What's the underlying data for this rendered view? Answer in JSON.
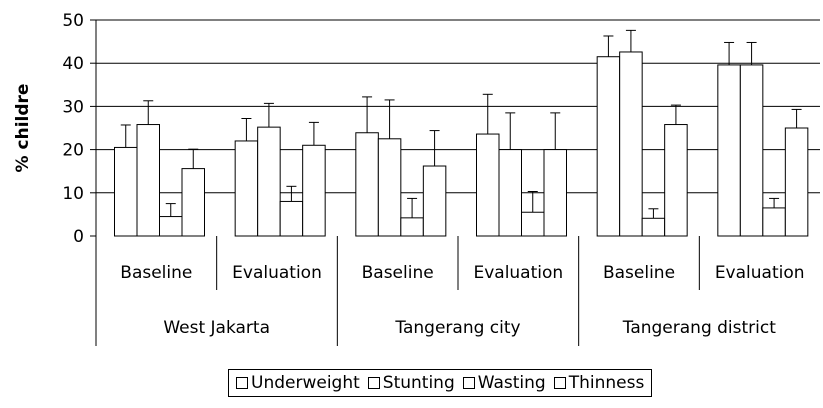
{
  "chart_data": {
    "type": "bar",
    "ylabel": "% childre",
    "ylim": [
      0,
      50
    ],
    "yticks": [
      0,
      10,
      20,
      30,
      40,
      50
    ],
    "grid": true,
    "error_bars": true,
    "groups": [
      {
        "region": "West Jakarta",
        "periods": [
          {
            "label": "Baseline",
            "values": [
              20.5,
              25.8,
              4.5,
              15.6
            ],
            "errors": [
              5.2,
              5.5,
              3.0,
              4.5
            ]
          },
          {
            "label": "Evaluation",
            "values": [
              22.0,
              25.2,
              8.0,
              21.0
            ],
            "errors": [
              5.2,
              5.5,
              3.5,
              5.3
            ]
          }
        ]
      },
      {
        "region": "Tangerang city",
        "periods": [
          {
            "label": "Baseline",
            "values": [
              23.9,
              22.5,
              4.2,
              16.2
            ],
            "errors": [
              8.3,
              9.0,
              4.5,
              8.2
            ]
          },
          {
            "label": "Evaluation",
            "values": [
              23.6,
              20.0,
              5.5,
              20.0
            ],
            "errors": [
              9.2,
              8.5,
              4.8,
              8.5
            ]
          }
        ]
      },
      {
        "region": "Tangerang district",
        "periods": [
          {
            "label": "Baseline",
            "values": [
              41.5,
              42.6,
              4.1,
              25.8
            ],
            "errors": [
              4.8,
              5.0,
              2.2,
              4.5
            ]
          },
          {
            "label": "Evaluation",
            "values": [
              39.6,
              39.6,
              6.5,
              25.0
            ],
            "errors": [
              5.2,
              5.2,
              2.2,
              4.3
            ]
          }
        ]
      }
    ],
    "series": [
      {
        "name": "Underweight"
      },
      {
        "name": "Stunting"
      },
      {
        "name": "Wasting"
      },
      {
        "name": "Thinness"
      }
    ],
    "legend_position": "bottom"
  }
}
